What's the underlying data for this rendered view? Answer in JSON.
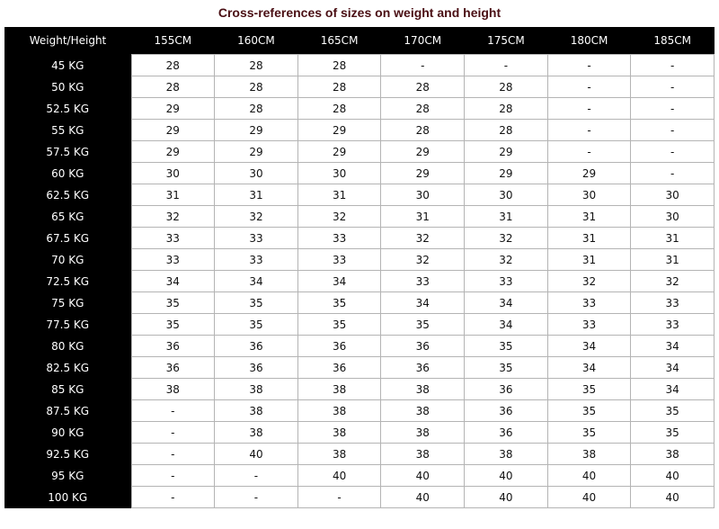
{
  "title": "Cross-references of sizes on weight and height",
  "colors": {
    "title": "#4a0f14",
    "header_bg": "#000000",
    "grid": "#b4b4b4"
  },
  "table": {
    "corner_label": "Weight/Height",
    "columns": [
      "155CM",
      "160CM",
      "165CM",
      "170CM",
      "175CM",
      "180CM",
      "185CM"
    ],
    "rows": [
      {
        "label": "45 KG",
        "values": [
          "28",
          "28",
          "28",
          "-",
          "-",
          "-",
          "-"
        ]
      },
      {
        "label": "50 KG",
        "values": [
          "28",
          "28",
          "28",
          "28",
          "28",
          "-",
          "-"
        ]
      },
      {
        "label": "52.5 KG",
        "values": [
          "29",
          "28",
          "28",
          "28",
          "28",
          "-",
          "-"
        ]
      },
      {
        "label": "55 KG",
        "values": [
          "29",
          "29",
          "29",
          "28",
          "28",
          "-",
          "-"
        ]
      },
      {
        "label": "57.5 KG",
        "values": [
          "29",
          "29",
          "29",
          "29",
          "29",
          "-",
          "-"
        ]
      },
      {
        "label": "60 KG",
        "values": [
          "30",
          "30",
          "30",
          "29",
          "29",
          "29",
          "-"
        ]
      },
      {
        "label": "62.5 KG",
        "values": [
          "31",
          "31",
          "31",
          "30",
          "30",
          "30",
          "30"
        ]
      },
      {
        "label": "65 KG",
        "values": [
          "32",
          "32",
          "32",
          "31",
          "31",
          "31",
          "30"
        ]
      },
      {
        "label": "67.5 KG",
        "values": [
          "33",
          "33",
          "33",
          "32",
          "32",
          "31",
          "31"
        ]
      },
      {
        "label": "70 KG",
        "values": [
          "33",
          "33",
          "33",
          "32",
          "32",
          "31",
          "31"
        ]
      },
      {
        "label": "72.5 KG",
        "values": [
          "34",
          "34",
          "34",
          "33",
          "33",
          "32",
          "32"
        ]
      },
      {
        "label": "75 KG",
        "values": [
          "35",
          "35",
          "35",
          "34",
          "34",
          "33",
          "33"
        ]
      },
      {
        "label": "77.5 KG",
        "values": [
          "35",
          "35",
          "35",
          "35",
          "34",
          "33",
          "33"
        ]
      },
      {
        "label": "80 KG",
        "values": [
          "36",
          "36",
          "36",
          "36",
          "35",
          "34",
          "34"
        ]
      },
      {
        "label": "82.5 KG",
        "values": [
          "36",
          "36",
          "36",
          "36",
          "35",
          "34",
          "34"
        ]
      },
      {
        "label": "85 KG",
        "values": [
          "38",
          "38",
          "38",
          "38",
          "36",
          "35",
          "34"
        ]
      },
      {
        "label": "87.5 KG",
        "values": [
          "-",
          "38",
          "38",
          "38",
          "36",
          "35",
          "35"
        ]
      },
      {
        "label": "90 KG",
        "values": [
          "-",
          "38",
          "38",
          "38",
          "36",
          "35",
          "35"
        ]
      },
      {
        "label": "92.5 KG",
        "values": [
          "-",
          "40",
          "38",
          "38",
          "38",
          "38",
          "38"
        ]
      },
      {
        "label": "95 KG",
        "values": [
          "-",
          "-",
          "40",
          "40",
          "40",
          "40",
          "40"
        ]
      },
      {
        "label": "100 KG",
        "values": [
          "-",
          "-",
          "-",
          "40",
          "40",
          "40",
          "40"
        ]
      }
    ]
  }
}
